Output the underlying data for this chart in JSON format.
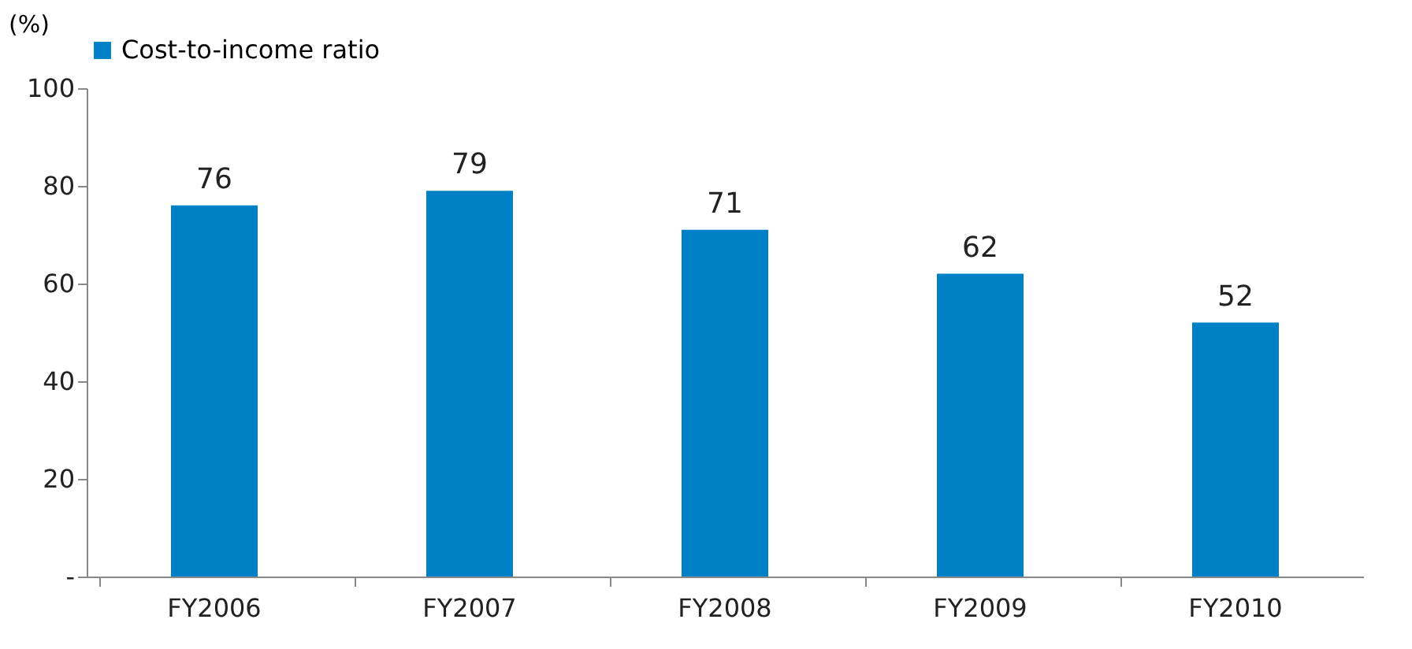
{
  "chart_data": {
    "type": "bar",
    "ylabel": "(%)",
    "categories": [
      "FY2006",
      "FY2007",
      "FY2008",
      "FY2009",
      "FY2010"
    ],
    "series": [
      {
        "name": "Cost-to-income ratio",
        "color": "#0080c6",
        "values": [
          76,
          79,
          71,
          62,
          52
        ]
      }
    ],
    "ylim": [
      0,
      100
    ],
    "yticks": [
      {
        "value": 0,
        "label": "-"
      },
      20,
      40,
      60,
      80,
      100
    ],
    "data_labels": true,
    "grid": false,
    "legend": "top"
  }
}
